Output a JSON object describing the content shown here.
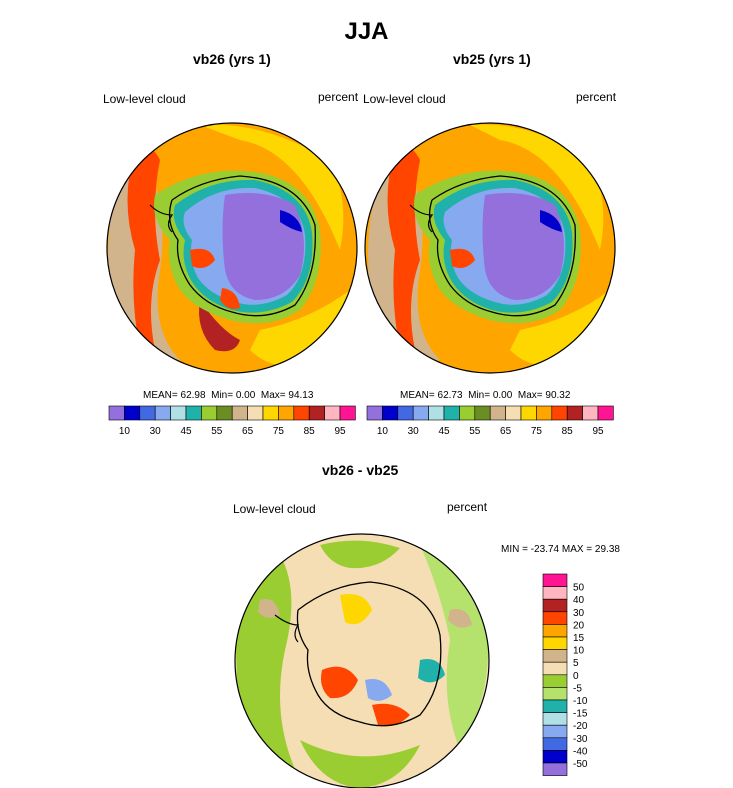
{
  "figure": {
    "title": "JJA"
  },
  "colors": {
    "colorbar_abs": [
      "#9370db",
      "#0000cd",
      "#4169e1",
      "#87a9f0",
      "#b0e0e6",
      "#20b2aa",
      "#9acd32",
      "#6b8e23",
      "#d2b48c",
      "#f5deb3",
      "#ffd700",
      "#ffa500",
      "#ff4500",
      "#b22222",
      "#ffb6c1",
      "#ff1493"
    ],
    "colorbar_diff": [
      "#ff1493",
      "#ffb6c1",
      "#b22222",
      "#ff4500",
      "#ffa500",
      "#ffd700",
      "#d2b48c",
      "#f5deb3",
      "#9acd32",
      "#b4e26c",
      "#20b2aa",
      "#b0e0e6",
      "#87a9f0",
      "#4169e1",
      "#0000cd",
      "#9370db"
    ]
  },
  "chart_data": [
    {
      "type": "heatmap",
      "id": "vb26",
      "title": "vb26 (yrs 1)",
      "left_label": "Low-level cloud",
      "right_label": "percent",
      "stats": {
        "mean_label": "MEAN=",
        "mean": "62.98",
        "min_label": "Min=",
        "min": "0.00",
        "max_label": "Max=",
        "max": "94.13"
      },
      "colorbar_ticks": [
        "10",
        "30",
        "45",
        "55",
        "65",
        "75",
        "85",
        "95"
      ],
      "projection": "south polar stereographic"
    },
    {
      "type": "heatmap",
      "id": "vb25",
      "title": "vb25 (yrs 1)",
      "left_label": "Low-level cloud",
      "right_label": "percent",
      "stats": {
        "mean_label": "MEAN=",
        "mean": "62.73",
        "min_label": "Min=",
        "min": "0.00",
        "max_label": "Max=",
        "max": "90.32"
      },
      "colorbar_ticks": [
        "10",
        "30",
        "45",
        "55",
        "65",
        "75",
        "85",
        "95"
      ],
      "projection": "south polar stereographic"
    },
    {
      "type": "heatmap",
      "id": "diff",
      "title": "vb26 - vb25",
      "left_label": "Low-level cloud",
      "right_label": "percent",
      "range_text": "MIN = -23.74 MAX =  29.38",
      "colorbar_ticks": [
        "50",
        "40",
        "30",
        "20",
        "15",
        "10",
        "5",
        "0",
        "-5",
        "-10",
        "-15",
        "-20",
        "-30",
        "-40",
        "-50"
      ],
      "projection": "south polar stereographic"
    }
  ]
}
